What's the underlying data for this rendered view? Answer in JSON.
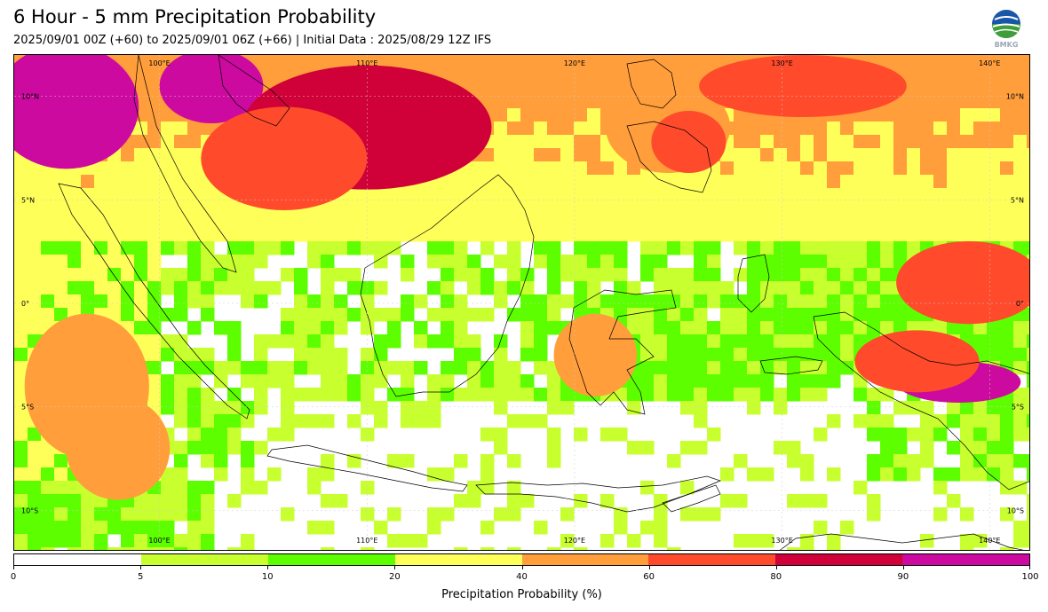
{
  "header": {
    "title": "6 Hour - 5 mm Precipitation Probability",
    "subtitle": "2025/09/01 00Z (+60) to 2025/09/01 06Z (+66) | Initial Data : 2025/08/29 12Z IFS",
    "logo_text": "BMKG",
    "logo_icon": "bmkg-logo-icon"
  },
  "map": {
    "extent": {
      "lon": [
        93,
        142
      ],
      "lat": [
        -12,
        12
      ]
    },
    "lon_ticks": [
      {
        "value": 100,
        "label": "100°E"
      },
      {
        "value": 110,
        "label": "110°E"
      },
      {
        "value": 120,
        "label": "120°E"
      },
      {
        "value": 130,
        "label": "130°E"
      },
      {
        "value": 140,
        "label": "140°E"
      }
    ],
    "lat_ticks": [
      {
        "value": 10,
        "label": "10°N"
      },
      {
        "value": 5,
        "label": "5°N"
      },
      {
        "value": 0,
        "label": "0°"
      },
      {
        "value": -5,
        "label": "5°S"
      },
      {
        "value": -10,
        "label": "10°S"
      }
    ],
    "regions": [
      {
        "lon": 95.5,
        "lat": 9.5,
        "rx": 3.5,
        "ry": 3.0,
        "level": 90
      },
      {
        "lon": 102.5,
        "lat": 10.5,
        "rx": 2.5,
        "ry": 1.8,
        "level": 90
      },
      {
        "lon": 110.0,
        "lat": 8.5,
        "rx": 6.0,
        "ry": 3.0,
        "level": 80
      },
      {
        "lon": 106.0,
        "lat": 7.0,
        "rx": 4.0,
        "ry": 2.5,
        "level": 60
      },
      {
        "lon": 124.5,
        "lat": 8.5,
        "rx": 3.0,
        "ry": 2.2,
        "level": 40
      },
      {
        "lon": 125.5,
        "lat": 7.8,
        "rx": 1.8,
        "ry": 1.5,
        "level": 60
      },
      {
        "lon": 131.0,
        "lat": 10.5,
        "rx": 5.0,
        "ry": 1.5,
        "level": 60
      },
      {
        "lon": 139.0,
        "lat": 1.0,
        "rx": 3.5,
        "ry": 2.0,
        "level": 60
      },
      {
        "lon": 138.5,
        "lat": -3.8,
        "rx": 3.0,
        "ry": 1.0,
        "level": 90
      },
      {
        "lon": 136.5,
        "lat": -2.8,
        "rx": 3.0,
        "ry": 1.5,
        "level": 60
      },
      {
        "lon": 96.5,
        "lat": -4.0,
        "rx": 3.0,
        "ry": 3.5,
        "level": 40
      },
      {
        "lon": 98.0,
        "lat": -7.0,
        "rx": 2.5,
        "ry": 2.5,
        "level": 40
      },
      {
        "lon": 121.0,
        "lat": -2.5,
        "rx": 2.0,
        "ry": 2.0,
        "level": 40
      }
    ]
  },
  "colorbar": {
    "label": "Precipitation Probability (%)",
    "bins": [
      {
        "from": 0,
        "to": 5,
        "color": "#ffffff"
      },
      {
        "from": 5,
        "to": 10,
        "color": "#c8ff2f"
      },
      {
        "from": 10,
        "to": 20,
        "color": "#5dff00"
      },
      {
        "from": 20,
        "to": 40,
        "color": "#ffff5a"
      },
      {
        "from": 40,
        "to": 60,
        "color": "#ff9e3b"
      },
      {
        "from": 60,
        "to": 80,
        "color": "#ff4b2b"
      },
      {
        "from": 80,
        "to": 90,
        "color": "#d00038"
      },
      {
        "from": 90,
        "to": 100,
        "color": "#cc0aa0"
      }
    ],
    "tick_labels": [
      "0",
      "5",
      "10",
      "20",
      "40",
      "60",
      "80",
      "90",
      "100"
    ]
  }
}
